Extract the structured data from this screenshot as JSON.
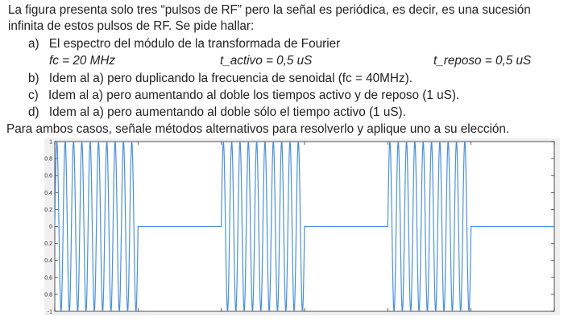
{
  "document": {
    "intro_line1": "La figura presenta solo tres “pulsos de RF” pero la señal es periódica, es decir, es una sucesión",
    "intro_line2": "infinita de estos pulsos de RF. Se pide hallar:",
    "items": [
      {
        "letter": "a)",
        "text": "El espectro del módulo de la transformada de Fourier"
      },
      {
        "letter": "b)",
        "text": "Idem al a) pero duplicando la frecuencia de senoidal (fc = 40MHz)."
      },
      {
        "letter": "c)",
        "text": "Idem al a) pero aumentando al doble los tiempos activo y de reposo (1 uS)."
      },
      {
        "letter": "d)",
        "text": "Idem al a) pero aumentando al doble sólo el tiempo activo (1 uS)."
      }
    ],
    "params": {
      "fc": "fc = 20 MHz",
      "t_activo": "t_activo = 0,5 uS",
      "t_reposo": "t_reposo = 0,5 uS"
    },
    "closing": "Para ambos casos, señale métodos alternativos para resolverlo y aplique uno a su elección."
  },
  "chart_data": {
    "type": "line",
    "y_ticks": [
      "1",
      "0.8",
      "0.6",
      "0.4",
      "0.2",
      "0",
      "-0.2",
      "-0.4",
      "-0.6",
      "-0.8",
      "-1"
    ],
    "ylim": [
      -1,
      1
    ],
    "x_tick_labels": [],
    "grid": false,
    "series": [
      {
        "signal": "RF pulse train",
        "pulses": 3,
        "cycles_per_pulse": 10,
        "amplitude": 1,
        "fc_MHz": 20,
        "t_activo_us": 0.5,
        "t_reposo_us": 0.5
      }
    ],
    "colors": {
      "line": "#4a90d9",
      "axis": "#262626",
      "tick_text": "#333333"
    }
  }
}
